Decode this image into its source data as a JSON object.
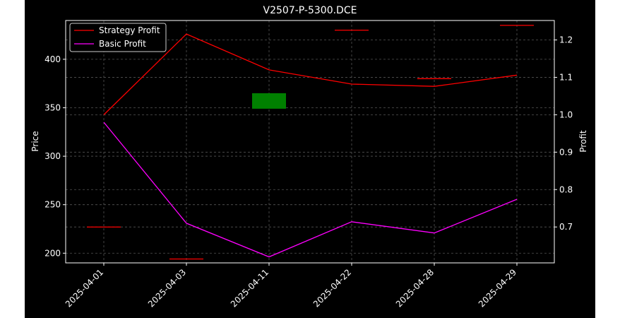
{
  "chart_data": {
    "type": "line",
    "title": "V2507-P-5300.DCE",
    "xlabel": "",
    "ylabel_left": "Price",
    "ylabel_right": "Profit",
    "categories": [
      "2025-04-01",
      "2025-04-03",
      "2025-04-11",
      "2025-04-22",
      "2025-04-28",
      "2025-04-29"
    ],
    "ylim_left": [
      190,
      440
    ],
    "yticks_left": [
      200,
      250,
      300,
      350,
      400
    ],
    "ylim_right": [
      0.604,
      1.252
    ],
    "yticks_right": [
      0.7,
      0.8,
      0.9,
      1.0,
      1.1,
      1.2
    ],
    "grid": true,
    "legend_position": "top-left",
    "series": [
      {
        "name": "Strategy Profit",
        "axis": "right",
        "color": "#ff0000",
        "values": [
          1.0,
          1.216,
          1.12,
          1.082,
          1.076,
          1.106
        ]
      },
      {
        "name": "Basic Profit",
        "axis": "right",
        "color": "#ff00ff",
        "values": [
          0.98,
          0.71,
          0.62,
          0.714,
          0.684,
          0.774
        ]
      }
    ],
    "price_markers": {
      "color": "#ff0000",
      "items": [
        {
          "x": "2025-04-01",
          "price": 227
        },
        {
          "x": "2025-04-03",
          "price": 194
        },
        {
          "x": "2025-04-22",
          "price": 430
        },
        {
          "x": "2025-04-28",
          "price": 380
        },
        {
          "x": "2025-04-29",
          "price": 435
        }
      ]
    },
    "candles": {
      "color": "#008000",
      "items": [
        {
          "x": "2025-04-11",
          "open": 349,
          "close": 365
        }
      ]
    },
    "colors": {
      "background": "#000000",
      "axes": "#ffffff",
      "grid": "#555555",
      "figure": "#ffffff"
    }
  }
}
